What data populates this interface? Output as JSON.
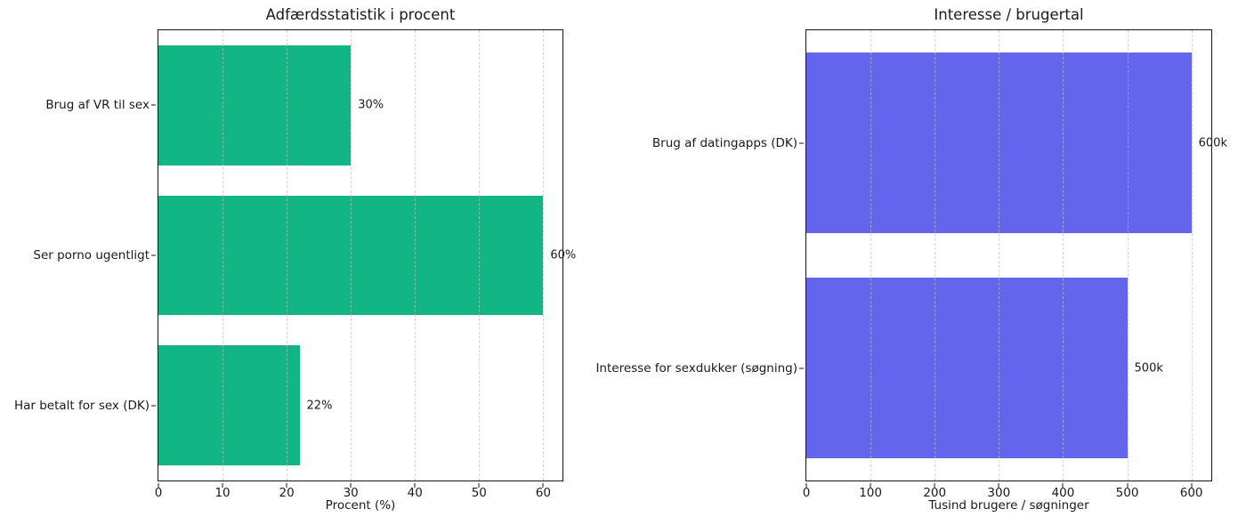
{
  "page": {
    "background_color": "#ffffff",
    "text_color": "#1a1a1a",
    "grid_color": "#d9d9d9"
  },
  "chart_data": [
    {
      "type": "bar",
      "orientation": "horizontal",
      "title": "Adfærdsstatistik i procent",
      "xlabel": "Procent (%)",
      "ylabel": "",
      "categories": [
        "Brug af VR til sex",
        "Ser porno ugentligt",
        "Har betalt for sex (DK)"
      ],
      "values": [
        30,
        60,
        22
      ],
      "value_labels": [
        "30%",
        "60%",
        "22%"
      ],
      "xlim": [
        0,
        63
      ],
      "xticks": [
        0,
        10,
        20,
        30,
        40,
        50,
        60
      ],
      "bar_color": "#12b584",
      "grid": "vertical-dashed",
      "legend": "none"
    },
    {
      "type": "bar",
      "orientation": "horizontal",
      "title": "Interesse / brugertal",
      "xlabel": "Tusind brugere / søgninger",
      "ylabel": "",
      "categories": [
        "Brug af datingapps (DK)",
        "Interesse for sexdukker (søgning)"
      ],
      "values": [
        600,
        500
      ],
      "value_labels": [
        "600k",
        "500k"
      ],
      "xlim": [
        0,
        631
      ],
      "xticks": [
        0,
        100,
        200,
        300,
        400,
        500,
        600
      ],
      "bar_color": "#6366ec",
      "grid": "vertical-dashed",
      "legend": "none"
    }
  ]
}
